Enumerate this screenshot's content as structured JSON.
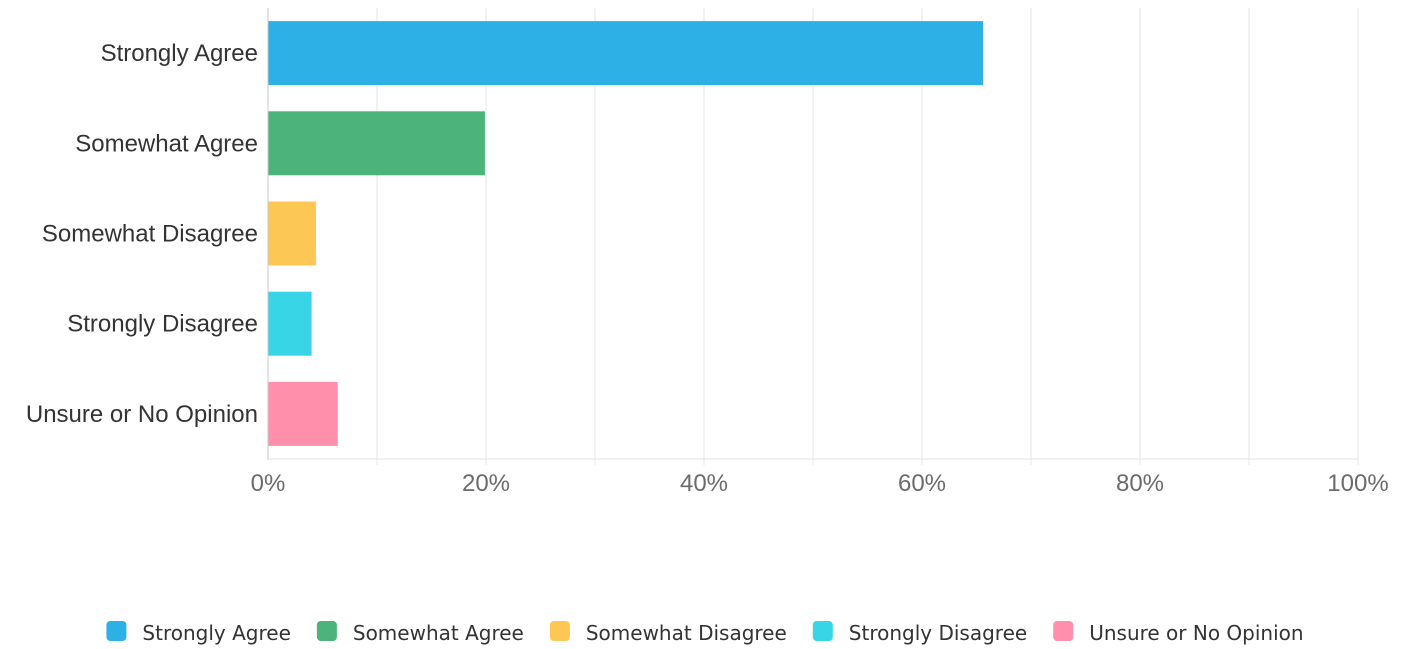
{
  "chart_data": {
    "type": "bar",
    "orientation": "horizontal",
    "categories": [
      "Strongly Agree",
      "Somewhat Agree",
      "Somewhat Disagree",
      "Strongly Disagree",
      "Unsure or No Opinion"
    ],
    "values": [
      65.6,
      19.9,
      4.4,
      4.0,
      6.4
    ],
    "colors": [
      "#2db0e6",
      "#4cb47a",
      "#fcc755",
      "#37d5e6",
      "#ff8fab"
    ],
    "xticks": [
      "0%",
      "20%",
      "40%",
      "60%",
      "80%",
      "100%"
    ],
    "xlim": [
      0,
      100
    ],
    "grid": true,
    "legend_position": "bottom",
    "legend": [
      "Strongly Agree",
      "Somewhat Agree",
      "Somewhat Disagree",
      "Strongly Disagree",
      "Unsure or No Opinion"
    ]
  }
}
